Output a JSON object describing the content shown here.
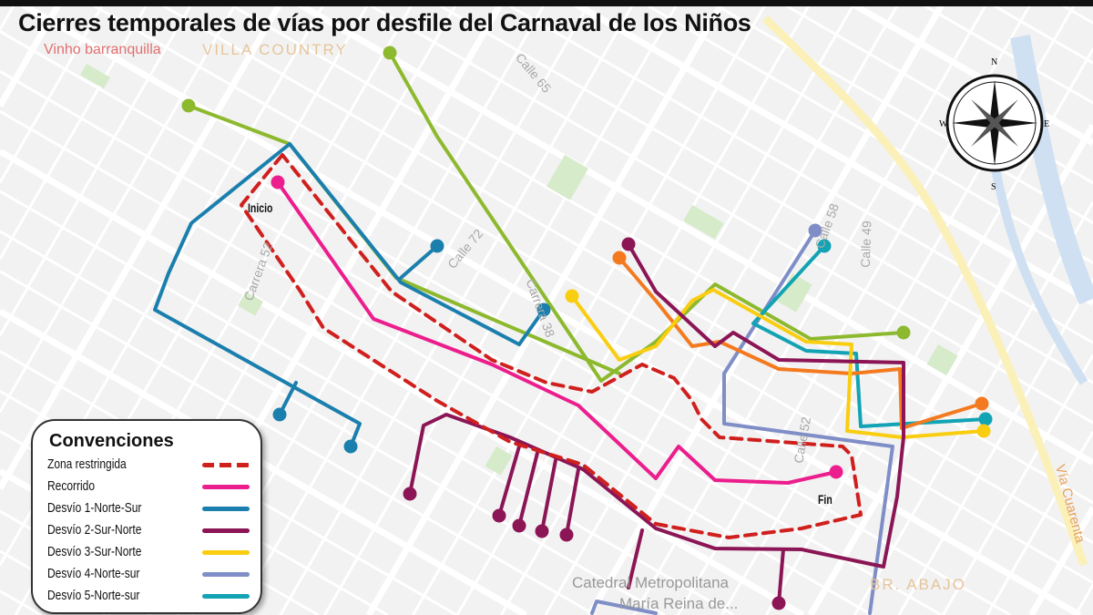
{
  "title": "Cierres temporales de vías por desfile del Carnaval de los Niños",
  "map_labels": {
    "poi": "Vinho barranquilla",
    "neighborhood_1": "VILLA COUNTRY",
    "neighborhood_2": "BR. ABAJO",
    "cathedral_1": "Catedral Metropolitana",
    "cathedral_2": "María Reina de...",
    "street_1": "Calle 65",
    "street_2": "Calle 72",
    "street_3": "Carrera 52",
    "street_4": "Calle 52",
    "street_5": "Calle 49",
    "street_6": "Calle 58",
    "street_7": "Vía Cuarenta",
    "street_8": "Carrera 38"
  },
  "markers": {
    "start": "Inicio",
    "end": "Fin"
  },
  "compass": {
    "n": "N",
    "s": "S",
    "e": "E",
    "w": "W"
  },
  "legend": {
    "title": "Convenciones",
    "items": [
      {
        "label": "Zona restringida",
        "color": "#d0201e",
        "style": "dashed"
      },
      {
        "label": "Recorrido",
        "color": "#ec1d8c",
        "style": "solid"
      },
      {
        "label": "Desvío 1-Norte-Sur",
        "color": "#1b7fae",
        "style": "solid"
      },
      {
        "label": "Desvío 2-Sur-Norte",
        "color": "#8b1555",
        "style": "solid"
      },
      {
        "label": "Desvío 3-Sur-Norte",
        "color": "#f9cd10",
        "style": "solid"
      },
      {
        "label": "Desvío 4-Norte-sur",
        "color": "#7f8ec7",
        "style": "solid"
      },
      {
        "label": "Desvío 5-Norte-sur",
        "color": "#12a3b5",
        "style": "solid"
      }
    ]
  },
  "unlisted_route_colors": {
    "green": "#8db92e",
    "orange": "#f47a20"
  }
}
